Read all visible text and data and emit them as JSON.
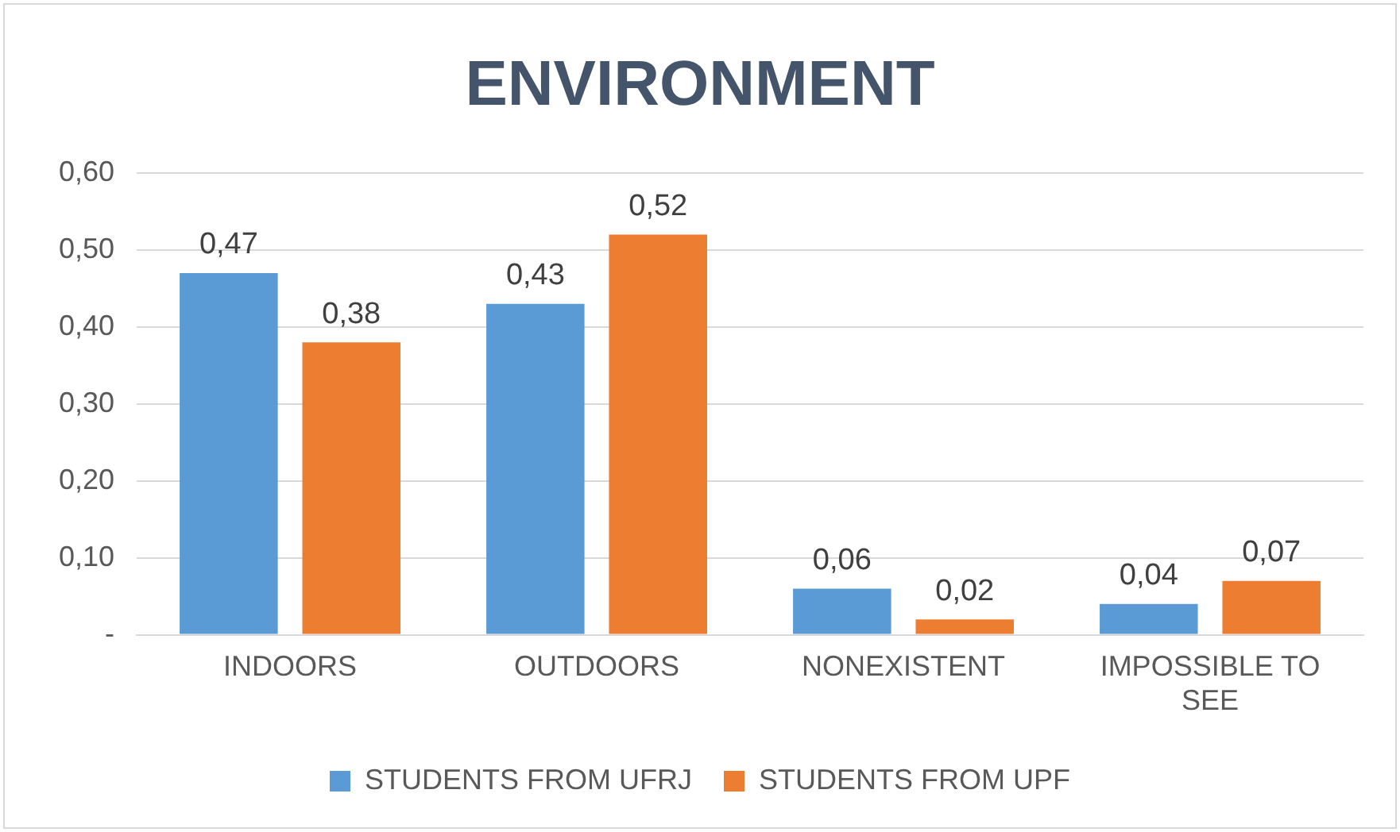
{
  "chart_data": {
    "type": "bar",
    "title": "ENVIRONMENT",
    "categories": [
      "INDOORS",
      "OUTDOORS",
      "NONEXISTENT",
      "IMPOSSIBLE TO SEE"
    ],
    "series": [
      {
        "name": "STUDENTS FROM UFRJ",
        "color": "#5b9bd5",
        "values": [
          0.47,
          0.43,
          0.06,
          0.04
        ],
        "value_labels": [
          "0,47",
          "0,43",
          "0,06",
          "0,04"
        ]
      },
      {
        "name": "STUDENTS FROM UPF",
        "color": "#ed7d31",
        "values": [
          0.38,
          0.52,
          0.02,
          0.07
        ],
        "value_labels": [
          "0,38",
          "0,52",
          "0,02",
          "0,07"
        ]
      }
    ],
    "ylim": [
      0,
      0.6
    ],
    "yticks": [
      {
        "value": 0,
        "label": "-"
      },
      {
        "value": 0.1,
        "label": "0,10"
      },
      {
        "value": 0.2,
        "label": "0,20"
      },
      {
        "value": 0.3,
        "label": "0,30"
      },
      {
        "value": 0.4,
        "label": "0,40"
      },
      {
        "value": 0.5,
        "label": "0,50"
      },
      {
        "value": 0.6,
        "label": "0,60"
      }
    ],
    "grid": "y",
    "legend": "bottom"
  }
}
